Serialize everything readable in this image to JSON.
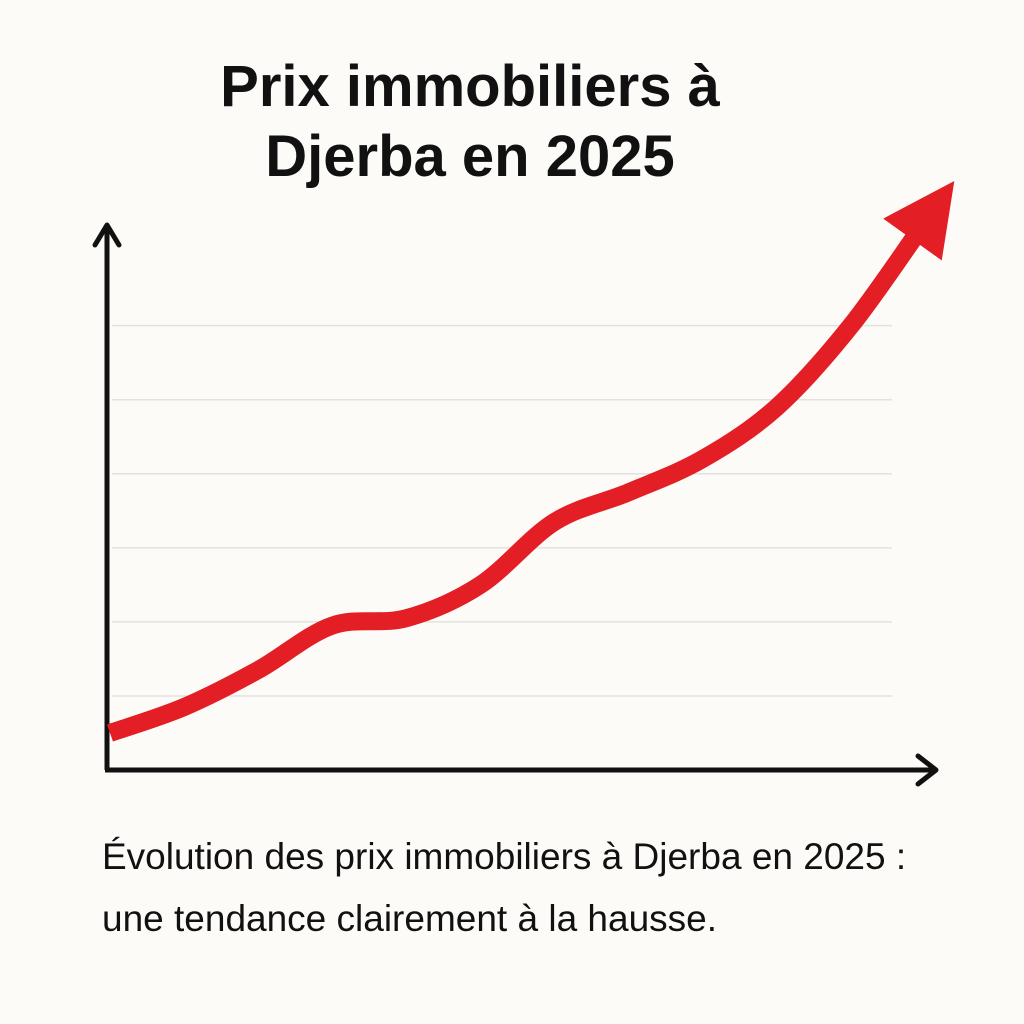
{
  "chart_data": {
    "type": "line",
    "title": "Prix immobiliers à Djerba en 2025",
    "caption": "Évolution des prix immobiliers à Djerba en 2025 : une tendance clairement à la hausse.",
    "categories": [
      null,
      null,
      null,
      null,
      null,
      null,
      null,
      null,
      null,
      null,
      null,
      null
    ],
    "values": [
      0.5,
      0.85,
      1.35,
      1.95,
      2.05,
      2.5,
      3.35,
      3.75,
      4.2,
      4.9,
      6.0,
      7.4
    ],
    "color": "#e31e24",
    "ylim": [
      0,
      7.4
    ],
    "yticks": [
      1,
      2,
      3,
      4,
      5,
      6
    ],
    "grid": true
  }
}
